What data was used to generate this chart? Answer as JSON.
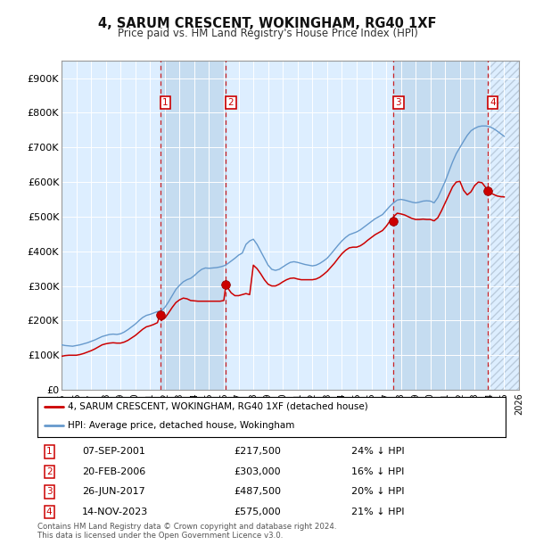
{
  "title": "4, SARUM CRESCENT, WOKINGHAM, RG40 1XF",
  "subtitle": "Price paid vs. HM Land Registry's House Price Index (HPI)",
  "background_color": "#ffffff",
  "plot_bg_color": "#ddeeff",
  "grid_color": "#ffffff",
  "hpi_color": "#6699cc",
  "price_color": "#cc0000",
  "purchases": [
    {
      "num": 1,
      "date": "07-SEP-2001",
      "x_year": 2001.68,
      "price": 217500,
      "pct": "24%"
    },
    {
      "num": 2,
      "date": "20-FEB-2006",
      "x_year": 2006.13,
      "price": 303000,
      "pct": "16%"
    },
    {
      "num": 3,
      "date": "26-JUN-2017",
      "x_year": 2017.49,
      "price": 487500,
      "pct": "20%"
    },
    {
      "num": 4,
      "date": "14-NOV-2023",
      "x_year": 2023.87,
      "price": 575000,
      "pct": "21%"
    }
  ],
  "ylim": [
    0,
    950000
  ],
  "xlim_start": 1995,
  "xlim_end": 2026,
  "yticks": [
    0,
    100000,
    200000,
    300000,
    400000,
    500000,
    600000,
    700000,
    800000,
    900000
  ],
  "ytick_labels": [
    "£0",
    "£100K",
    "£200K",
    "£300K",
    "£400K",
    "£500K",
    "£600K",
    "£700K",
    "£800K",
    "£900K"
  ],
  "xticks": [
    1995,
    1996,
    1997,
    1998,
    1999,
    2000,
    2001,
    2002,
    2003,
    2004,
    2005,
    2006,
    2007,
    2008,
    2009,
    2010,
    2011,
    2012,
    2013,
    2014,
    2015,
    2016,
    2017,
    2018,
    2019,
    2020,
    2021,
    2022,
    2023,
    2024,
    2025,
    2026
  ],
  "legend_price_label": "4, SARUM CRESCENT, WOKINGHAM, RG40 1XF (detached house)",
  "legend_hpi_label": "HPI: Average price, detached house, Wokingham",
  "footer": "Contains HM Land Registry data © Crown copyright and database right 2024.\nThis data is licensed under the Open Government Licence v3.0.",
  "hpi_data": [
    [
      1995.0,
      130000
    ],
    [
      1995.25,
      128000
    ],
    [
      1995.5,
      127000
    ],
    [
      1995.75,
      126000
    ],
    [
      1996.0,
      128000
    ],
    [
      1996.25,
      130000
    ],
    [
      1996.5,
      133000
    ],
    [
      1996.75,
      136000
    ],
    [
      1997.0,
      140000
    ],
    [
      1997.25,
      144000
    ],
    [
      1997.5,
      149000
    ],
    [
      1997.75,
      154000
    ],
    [
      1998.0,
      157000
    ],
    [
      1998.25,
      160000
    ],
    [
      1998.5,
      161000
    ],
    [
      1998.75,
      160000
    ],
    [
      1999.0,
      162000
    ],
    [
      1999.25,
      167000
    ],
    [
      1999.5,
      174000
    ],
    [
      1999.75,
      182000
    ],
    [
      2000.0,
      190000
    ],
    [
      2000.25,
      200000
    ],
    [
      2000.5,
      209000
    ],
    [
      2000.75,
      215000
    ],
    [
      2001.0,
      218000
    ],
    [
      2001.25,
      222000
    ],
    [
      2001.5,
      226000
    ],
    [
      2001.75,
      228000
    ],
    [
      2002.0,
      238000
    ],
    [
      2002.25,
      254000
    ],
    [
      2002.5,
      272000
    ],
    [
      2002.75,
      290000
    ],
    [
      2003.0,
      302000
    ],
    [
      2003.25,
      312000
    ],
    [
      2003.5,
      318000
    ],
    [
      2003.75,
      322000
    ],
    [
      2004.0,
      330000
    ],
    [
      2004.25,
      340000
    ],
    [
      2004.5,
      348000
    ],
    [
      2004.75,
      352000
    ],
    [
      2005.0,
      351000
    ],
    [
      2005.25,
      352000
    ],
    [
      2005.5,
      353000
    ],
    [
      2005.75,
      355000
    ],
    [
      2006.0,
      358000
    ],
    [
      2006.25,
      364000
    ],
    [
      2006.5,
      372000
    ],
    [
      2006.75,
      380000
    ],
    [
      2007.0,
      389000
    ],
    [
      2007.25,
      395000
    ],
    [
      2007.5,
      420000
    ],
    [
      2007.75,
      430000
    ],
    [
      2008.0,
      435000
    ],
    [
      2008.25,
      420000
    ],
    [
      2008.5,
      400000
    ],
    [
      2008.75,
      380000
    ],
    [
      2009.0,
      360000
    ],
    [
      2009.25,
      348000
    ],
    [
      2009.5,
      345000
    ],
    [
      2009.75,
      348000
    ],
    [
      2010.0,
      355000
    ],
    [
      2010.25,
      362000
    ],
    [
      2010.5,
      368000
    ],
    [
      2010.75,
      370000
    ],
    [
      2011.0,
      368000
    ],
    [
      2011.25,
      365000
    ],
    [
      2011.5,
      362000
    ],
    [
      2011.75,
      360000
    ],
    [
      2012.0,
      358000
    ],
    [
      2012.25,
      360000
    ],
    [
      2012.5,
      365000
    ],
    [
      2012.75,
      372000
    ],
    [
      2013.0,
      380000
    ],
    [
      2013.25,
      392000
    ],
    [
      2013.5,
      405000
    ],
    [
      2013.75,
      418000
    ],
    [
      2014.0,
      430000
    ],
    [
      2014.25,
      440000
    ],
    [
      2014.5,
      448000
    ],
    [
      2014.75,
      452000
    ],
    [
      2015.0,
      456000
    ],
    [
      2015.25,
      462000
    ],
    [
      2015.5,
      470000
    ],
    [
      2015.75,
      478000
    ],
    [
      2016.0,
      486000
    ],
    [
      2016.25,
      494000
    ],
    [
      2016.5,
      500000
    ],
    [
      2016.75,
      506000
    ],
    [
      2017.0,
      518000
    ],
    [
      2017.25,
      530000
    ],
    [
      2017.5,
      540000
    ],
    [
      2017.75,
      548000
    ],
    [
      2018.0,
      550000
    ],
    [
      2018.25,
      548000
    ],
    [
      2018.5,
      545000
    ],
    [
      2018.75,
      542000
    ],
    [
      2019.0,
      540000
    ],
    [
      2019.25,
      542000
    ],
    [
      2019.5,
      545000
    ],
    [
      2019.75,
      546000
    ],
    [
      2020.0,
      545000
    ],
    [
      2020.25,
      540000
    ],
    [
      2020.5,
      555000
    ],
    [
      2020.75,
      578000
    ],
    [
      2021.0,
      602000
    ],
    [
      2021.25,
      630000
    ],
    [
      2021.5,
      658000
    ],
    [
      2021.75,
      682000
    ],
    [
      2022.0,
      700000
    ],
    [
      2022.25,
      718000
    ],
    [
      2022.5,
      735000
    ],
    [
      2022.75,
      748000
    ],
    [
      2023.0,
      755000
    ],
    [
      2023.25,
      760000
    ],
    [
      2023.5,
      762000
    ],
    [
      2023.75,
      762000
    ],
    [
      2024.0,
      760000
    ],
    [
      2024.25,
      755000
    ],
    [
      2024.5,
      748000
    ],
    [
      2024.75,
      740000
    ],
    [
      2025.0,
      732000
    ]
  ],
  "price_data": [
    [
      1995.0,
      97000
    ],
    [
      1995.25,
      99000
    ],
    [
      1995.5,
      100000
    ],
    [
      1995.75,
      100000
    ],
    [
      1996.0,
      100000
    ],
    [
      1996.25,
      102000
    ],
    [
      1996.5,
      105000
    ],
    [
      1996.75,
      109000
    ],
    [
      1997.0,
      113000
    ],
    [
      1997.25,
      118000
    ],
    [
      1997.5,
      124000
    ],
    [
      1997.75,
      130000
    ],
    [
      1998.0,
      133000
    ],
    [
      1998.25,
      135000
    ],
    [
      1998.5,
      136000
    ],
    [
      1998.75,
      135000
    ],
    [
      1999.0,
      135000
    ],
    [
      1999.25,
      138000
    ],
    [
      1999.5,
      143000
    ],
    [
      1999.75,
      150000
    ],
    [
      2000.0,
      157000
    ],
    [
      2000.25,
      166000
    ],
    [
      2000.5,
      175000
    ],
    [
      2000.75,
      182000
    ],
    [
      2001.0,
      185000
    ],
    [
      2001.25,
      189000
    ],
    [
      2001.5,
      194000
    ],
    [
      2001.68,
      217500
    ],
    [
      2001.75,
      200000
    ],
    [
      2002.0,
      207000
    ],
    [
      2002.25,
      222000
    ],
    [
      2002.5,
      238000
    ],
    [
      2002.75,
      252000
    ],
    [
      2003.0,
      260000
    ],
    [
      2003.25,
      265000
    ],
    [
      2003.5,
      263000
    ],
    [
      2003.75,
      258000
    ],
    [
      2004.0,
      257000
    ],
    [
      2004.25,
      256000
    ],
    [
      2004.5,
      256000
    ],
    [
      2004.75,
      256000
    ],
    [
      2005.0,
      256000
    ],
    [
      2005.25,
      256000
    ],
    [
      2005.5,
      256000
    ],
    [
      2005.75,
      256000
    ],
    [
      2006.0,
      258000
    ],
    [
      2006.13,
      303000
    ],
    [
      2006.25,
      295000
    ],
    [
      2006.5,
      280000
    ],
    [
      2006.75,
      272000
    ],
    [
      2007.0,
      272000
    ],
    [
      2007.25,
      275000
    ],
    [
      2007.5,
      278000
    ],
    [
      2007.75,
      275000
    ],
    [
      2008.0,
      360000
    ],
    [
      2008.25,
      350000
    ],
    [
      2008.5,
      335000
    ],
    [
      2008.75,
      318000
    ],
    [
      2009.0,
      305000
    ],
    [
      2009.25,
      300000
    ],
    [
      2009.5,
      300000
    ],
    [
      2009.75,
      305000
    ],
    [
      2010.0,
      312000
    ],
    [
      2010.25,
      318000
    ],
    [
      2010.5,
      322000
    ],
    [
      2010.75,
      323000
    ],
    [
      2011.0,
      320000
    ],
    [
      2011.25,
      318000
    ],
    [
      2011.5,
      318000
    ],
    [
      2011.75,
      318000
    ],
    [
      2012.0,
      318000
    ],
    [
      2012.25,
      320000
    ],
    [
      2012.5,
      325000
    ],
    [
      2012.75,
      333000
    ],
    [
      2013.0,
      342000
    ],
    [
      2013.25,
      354000
    ],
    [
      2013.5,
      366000
    ],
    [
      2013.75,
      380000
    ],
    [
      2014.0,
      393000
    ],
    [
      2014.25,
      403000
    ],
    [
      2014.5,
      410000
    ],
    [
      2014.75,
      412000
    ],
    [
      2015.0,
      412000
    ],
    [
      2015.25,
      416000
    ],
    [
      2015.5,
      423000
    ],
    [
      2015.75,
      432000
    ],
    [
      2016.0,
      440000
    ],
    [
      2016.25,
      448000
    ],
    [
      2016.5,
      454000
    ],
    [
      2016.75,
      460000
    ],
    [
      2017.0,
      472000
    ],
    [
      2017.25,
      487000
    ],
    [
      2017.49,
      487500
    ],
    [
      2017.5,
      500000
    ],
    [
      2017.75,
      510000
    ],
    [
      2018.0,
      508000
    ],
    [
      2018.25,
      505000
    ],
    [
      2018.5,
      500000
    ],
    [
      2018.75,
      495000
    ],
    [
      2019.0,
      492000
    ],
    [
      2019.25,
      492000
    ],
    [
      2019.5,
      493000
    ],
    [
      2019.75,
      492000
    ],
    [
      2020.0,
      492000
    ],
    [
      2020.25,
      488000
    ],
    [
      2020.5,
      497000
    ],
    [
      2020.75,
      517000
    ],
    [
      2021.0,
      540000
    ],
    [
      2021.25,
      563000
    ],
    [
      2021.5,
      586000
    ],
    [
      2021.75,
      600000
    ],
    [
      2022.0,
      602000
    ],
    [
      2022.25,
      576000
    ],
    [
      2022.5,
      563000
    ],
    [
      2022.75,
      572000
    ],
    [
      2023.0,
      590000
    ],
    [
      2023.25,
      600000
    ],
    [
      2023.5,
      598000
    ],
    [
      2023.75,
      584000
    ],
    [
      2023.87,
      575000
    ],
    [
      2024.0,
      570000
    ],
    [
      2024.25,
      565000
    ],
    [
      2024.5,
      560000
    ],
    [
      2024.75,
      558000
    ],
    [
      2025.0,
      557000
    ]
  ]
}
